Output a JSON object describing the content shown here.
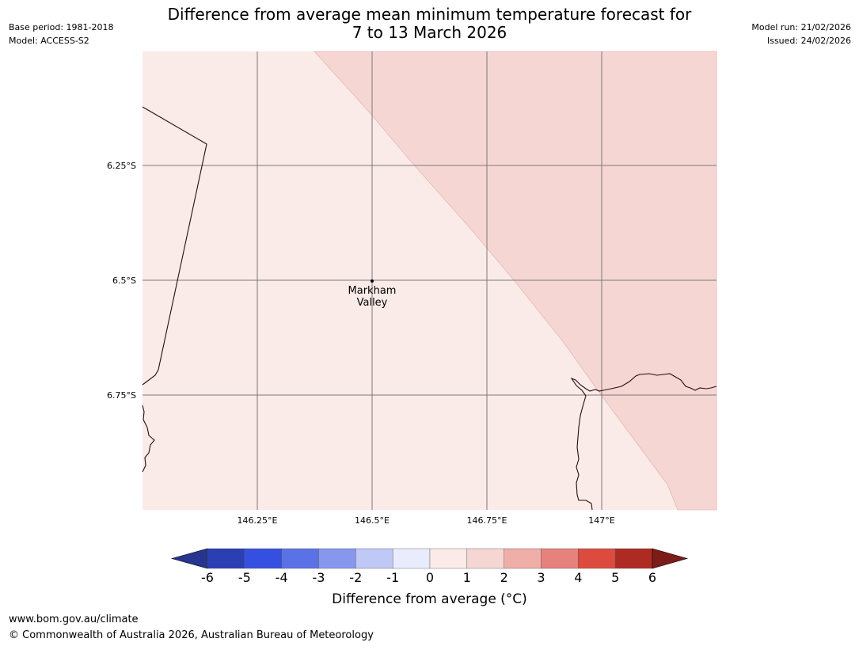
{
  "title_line1": "Difference from average mean minimum temperature forecast for",
  "title_line2": "7 to 13 March 2026",
  "meta_left": [
    "Base period: 1981-2018",
    "Model: ACCESS-S2"
  ],
  "meta_right": [
    "Model run: 21/02/2026",
    "Issued: 24/02/2026"
  ],
  "map": {
    "lat_labels": [
      "6.25°S",
      "6.5°S",
      "6.75°S"
    ],
    "lon_labels": [
      "146.25°E",
      "146.5°E",
      "146.75°E",
      "147°E"
    ],
    "place_name_line1": "Markham",
    "place_name_line2": "Valley",
    "background_color": "#fbebe8",
    "warm_zone_color": "#f6d6d3",
    "gridline_color": "#7a7a7a",
    "coast_color": "#2b0a12"
  },
  "colorbar": {
    "ticks": [
      "-6",
      "-5",
      "-4",
      "-3",
      "-2",
      "-1",
      "0",
      "1",
      "2",
      "3",
      "4",
      "5",
      "6"
    ],
    "colors": [
      "#26358f",
      "#2b3fb5",
      "#3550e0",
      "#5b72e6",
      "#8797ee",
      "#c0c8f6",
      "#e9ecfc",
      "#fbebe8",
      "#f6d6d3",
      "#efaea7",
      "#e6827b",
      "#dc4b3e",
      "#ad2b22",
      "#7d1c18"
    ],
    "label": "Difference from average (°C)"
  },
  "footer_url": "www.bom.gov.au/climate",
  "footer_copyright": "© Commonwealth of Australia 2026, Australian Bureau of Meteorology"
}
